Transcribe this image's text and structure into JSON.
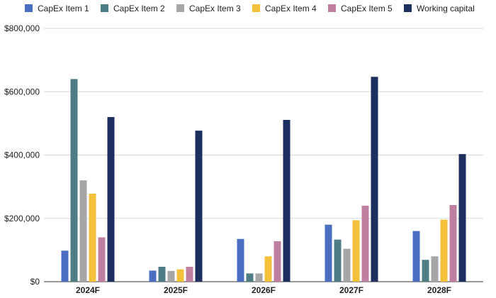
{
  "chart_data": {
    "type": "bar",
    "title": "",
    "xlabel": "",
    "ylabel": "",
    "categories": [
      "2024F",
      "2025F",
      "2026F",
      "2027F",
      "2028F"
    ],
    "ylim": [
      0,
      800000
    ],
    "yticks": [
      0,
      200000,
      400000,
      600000,
      800000
    ],
    "ytick_labels": [
      "$0",
      "$200,000",
      "$400,000",
      "$600,000",
      "$800,000"
    ],
    "grid": true,
    "legend_position": "top",
    "series": [
      {
        "name": "CapEx Item 1",
        "color": "#4a6fc1",
        "values": [
          98000,
          35000,
          135000,
          180000,
          160000
        ]
      },
      {
        "name": "CapEx Item 2",
        "color": "#4f7d86",
        "values": [
          640000,
          47000,
          26000,
          133000,
          69000
        ]
      },
      {
        "name": "CapEx Item 3",
        "color": "#a6a6a6",
        "values": [
          320000,
          34000,
          26000,
          104000,
          80000
        ]
      },
      {
        "name": "CapEx Item 4",
        "color": "#f4c13d",
        "values": [
          278000,
          39000,
          80000,
          194000,
          196000
        ]
      },
      {
        "name": "CapEx Item 5",
        "color": "#bf7fa0",
        "values": [
          140000,
          47000,
          128000,
          240000,
          242000
        ]
      },
      {
        "name": "Working capital",
        "color": "#1c2f5e",
        "values": [
          520000,
          477000,
          511000,
          647000,
          403000
        ]
      }
    ]
  }
}
